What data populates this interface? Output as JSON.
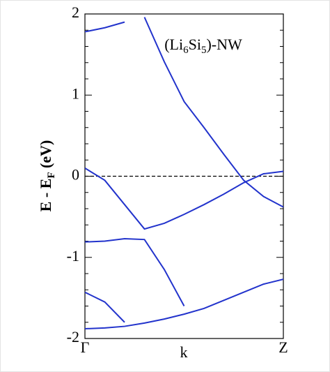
{
  "chart_data": {
    "type": "line",
    "annotation": [
      "(Li",
      "6",
      "Si",
      "5",
      ")-NW"
    ],
    "xlabel": "k",
    "ylabel": [
      "E - E",
      "F",
      " (eV)"
    ],
    "x": [
      0,
      0.1,
      0.2,
      0.3,
      0.4,
      0.5,
      0.6,
      0.7,
      0.8,
      0.9,
      1
    ],
    "xlim": [
      0,
      1
    ],
    "xticks": [
      {
        "value": 0,
        "label": "Γ"
      },
      {
        "value": 1,
        "label": "Z"
      }
    ],
    "ylim": [
      -2,
      2
    ],
    "yticks": [
      -2,
      -1,
      0,
      1,
      2
    ],
    "yminorticks": [
      -1.8,
      -1.6,
      -1.4,
      -1.2,
      -0.8,
      -0.6,
      -0.4,
      -0.2,
      0.2,
      0.4,
      0.6,
      0.8,
      1.2,
      1.4,
      1.6,
      1.8
    ],
    "hline": 0,
    "color": "#2233cc",
    "series": [
      {
        "values": [
          1.78,
          1.83,
          1.9,
          null,
          null,
          null,
          null,
          null,
          null,
          null,
          null
        ]
      },
      {
        "values": [
          null,
          null,
          null,
          1.96,
          1.41,
          0.92,
          0.6,
          0.27,
          -0.05,
          -0.25,
          -0.38
        ]
      },
      {
        "values": [
          0.1,
          -0.05,
          -0.35,
          -0.65,
          -0.58,
          -0.47,
          -0.35,
          -0.22,
          -0.08,
          0.03,
          0.06
        ]
      },
      {
        "values": [
          -0.81,
          -0.8,
          -0.77,
          -0.78,
          -1.15,
          -1.6,
          null,
          null,
          null,
          null,
          null
        ]
      },
      {
        "values": [
          -1.88,
          -1.87,
          -1.85,
          -1.81,
          -1.76,
          -1.7,
          -1.63,
          -1.53,
          -1.43,
          -1.33,
          -1.27
        ]
      },
      {
        "values": [
          -1.43,
          -1.55,
          -1.8,
          null,
          null,
          null,
          null,
          null,
          null,
          null,
          null
        ]
      }
    ]
  }
}
